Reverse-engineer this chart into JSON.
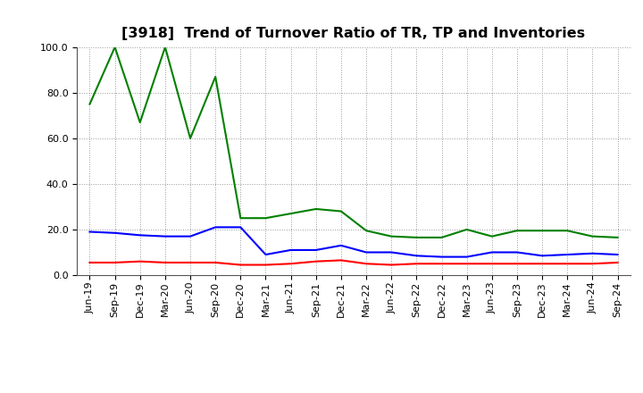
{
  "title": "[3918]  Trend of Turnover Ratio of TR, TP and Inventories",
  "ylim": [
    0.0,
    100.0
  ],
  "yticks": [
    0.0,
    20.0,
    40.0,
    60.0,
    80.0,
    100.0
  ],
  "x_labels": [
    "Jun-19",
    "Sep-19",
    "Dec-19",
    "Mar-20",
    "Jun-20",
    "Sep-20",
    "Dec-20",
    "Mar-21",
    "Jun-21",
    "Sep-21",
    "Dec-21",
    "Mar-22",
    "Jun-22",
    "Sep-22",
    "Dec-22",
    "Mar-23",
    "Jun-23",
    "Sep-23",
    "Dec-23",
    "Mar-24",
    "Jun-24",
    "Sep-24"
  ],
  "trade_receivables": [
    5.5,
    5.5,
    6.0,
    5.5,
    5.5,
    5.5,
    4.5,
    4.5,
    5.0,
    6.0,
    6.5,
    5.0,
    4.5,
    5.0,
    5.0,
    5.0,
    5.0,
    5.0,
    5.0,
    5.0,
    5.0,
    5.5
  ],
  "trade_payables": [
    19.0,
    18.5,
    17.5,
    17.0,
    17.0,
    21.0,
    21.0,
    9.0,
    11.0,
    11.0,
    13.0,
    10.0,
    10.0,
    8.5,
    8.0,
    8.0,
    10.0,
    10.0,
    8.5,
    9.0,
    9.5,
    9.0
  ],
  "inventories": [
    75.0,
    100.0,
    67.0,
    100.0,
    60.0,
    87.0,
    25.0,
    25.0,
    27.0,
    29.0,
    28.0,
    19.5,
    17.0,
    16.5,
    16.5,
    20.0,
    17.0,
    19.5,
    19.5,
    19.5,
    17.0,
    16.5
  ],
  "color_tr": "#ff0000",
  "color_tp": "#0000ff",
  "color_inv": "#008000",
  "bg_color": "#ffffff",
  "grid_color": "#999999",
  "title_fontsize": 11.5,
  "legend_fontsize": 9.5,
  "tick_fontsize": 8,
  "linewidth": 1.5
}
